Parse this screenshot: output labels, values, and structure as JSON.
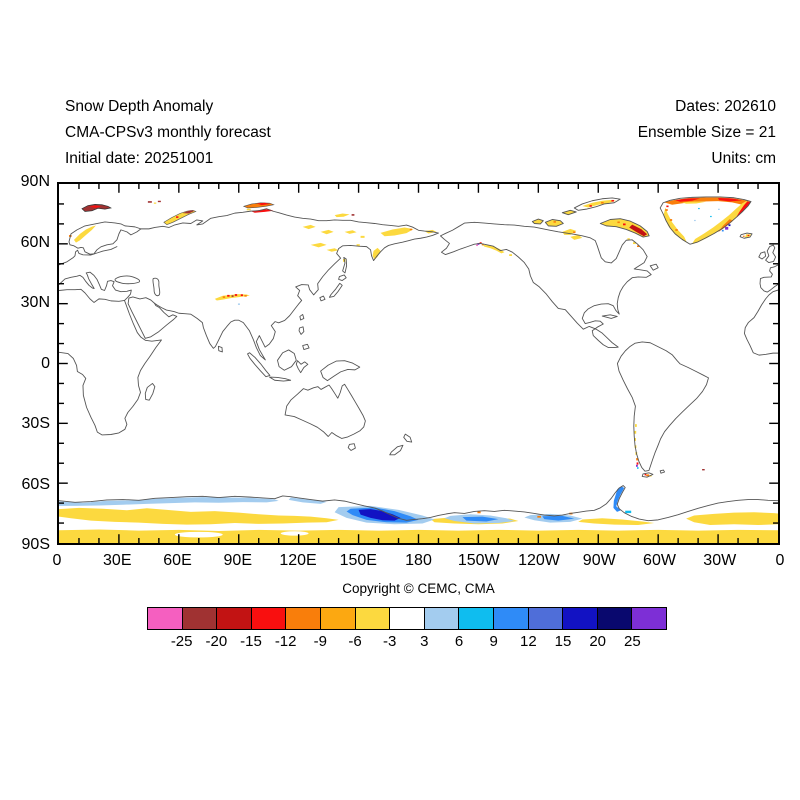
{
  "header": {
    "left": [
      "Snow Depth Anomaly",
      "CMA-CPSv3 monthly forecast",
      "Initial date: 20251001"
    ],
    "right": [
      "Dates: 202610",
      "Ensemble Size = 21",
      "Units: cm"
    ]
  },
  "map": {
    "lat_labels": [
      "90N",
      "60N",
      "30N",
      "0",
      "30S",
      "60S",
      "90S"
    ],
    "lon_labels": [
      "0",
      "30E",
      "60E",
      "90E",
      "120E",
      "150E",
      "180",
      "150W",
      "120W",
      "90W",
      "60W",
      "30W",
      "0"
    ],
    "anomaly_regions": [
      {
        "region": "Svalbard",
        "signal": "strong negative (dark red)"
      },
      {
        "region": "Franz Josef Land",
        "signal": "negative (dark red specks)"
      },
      {
        "region": "Scandinavian mountains",
        "signal": "weak negative (yellow band)"
      },
      {
        "region": "Novaya Zemlya",
        "signal": "negative (yellow with dark red tip)"
      },
      {
        "region": "Severnaya Zemlya / Taimyr coast",
        "signal": "negative (orange-red)"
      },
      {
        "region": "East Siberia / Chukotka / Kamchatka",
        "signal": "scattered weak negative (yellow)"
      },
      {
        "region": "Tibetan Plateau / Himalaya",
        "signal": "negative band (red-orange-yellow)"
      },
      {
        "region": "South-central Alaska",
        "signal": "mixed strong (purple/red/orange/yellow)"
      },
      {
        "region": "Canadian Arctic Archipelago",
        "signal": "negative (yellow with red specks)"
      },
      {
        "region": "Baffin Island",
        "signal": "negative (yellow with dark red band)"
      },
      {
        "region": "Greenland coastal margins",
        "signal": "strong negative ring (red/orange/yellow), small positive specks"
      },
      {
        "region": "Iceland",
        "signal": "negative (yellow/red)"
      },
      {
        "region": "Patagonian Andes",
        "signal": "negative chain with mixed cluster (yellow/red/purple)"
      },
      {
        "region": "South Georgia",
        "signal": "negative speck (dark red)"
      },
      {
        "region": "Antarctic coast 0-110E",
        "signal": "weak positive (light blue band)"
      },
      {
        "region": "Antarctic interior band",
        "signal": "weak negative (yellow)"
      },
      {
        "region": "Antarctica near 150-170E",
        "signal": "strong positive (dark blue core)"
      },
      {
        "region": "West Antarctica",
        "signal": "moderate positive (blue patches)"
      },
      {
        "region": "Antarctic Peninsula east side",
        "signal": "positive (blue strip)"
      },
      {
        "region": "Antarctica 82-90S strip",
        "signal": "weak negative (solid yellow)"
      }
    ]
  },
  "copyright": "Copyright © CEMC, CMA",
  "colorbar": {
    "colors": [
      "#F55FC0",
      "#A03232",
      "#C21313",
      "#F90F0F",
      "#F97E0B",
      "#FCA811",
      "#FCD93F",
      "#FFFFFF",
      "#A3CCEF",
      "#0FBDEF",
      "#2F8BF7",
      "#4F6ED9",
      "#1212C3",
      "#09086E",
      "#7D2FD6"
    ],
    "labels": [
      "-25",
      "-20",
      "-15",
      "-12",
      "-9",
      "-6",
      "-3",
      "3",
      "6",
      "9",
      "12",
      "15",
      "20",
      "25"
    ],
    "units": "cm"
  }
}
